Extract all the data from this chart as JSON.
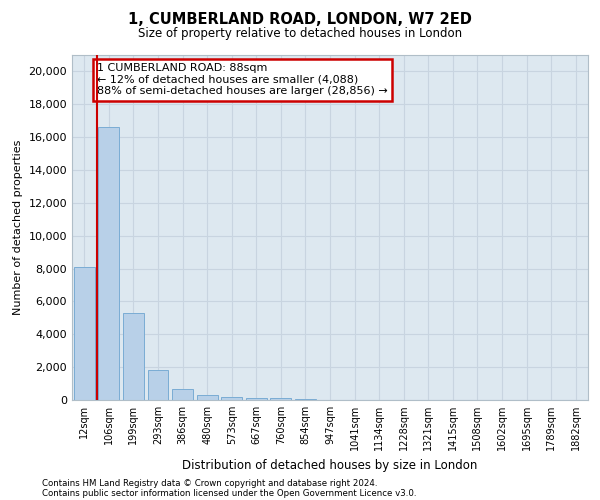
{
  "title_line1": "1, CUMBERLAND ROAD, LONDON, W7 2ED",
  "title_line2": "Size of property relative to detached houses in London",
  "xlabel": "Distribution of detached houses by size in London",
  "ylabel": "Number of detached properties",
  "categories": [
    "12sqm",
    "106sqm",
    "199sqm",
    "293sqm",
    "386sqm",
    "480sqm",
    "573sqm",
    "667sqm",
    "760sqm",
    "854sqm",
    "947sqm",
    "1041sqm",
    "1134sqm",
    "1228sqm",
    "1321sqm",
    "1415sqm",
    "1508sqm",
    "1602sqm",
    "1695sqm",
    "1789sqm",
    "1882sqm"
  ],
  "bar_values": [
    8100,
    16600,
    5300,
    1800,
    650,
    320,
    200,
    150,
    130,
    80,
    0,
    0,
    0,
    0,
    0,
    0,
    0,
    0,
    0,
    0,
    0
  ],
  "bar_color": "#b8d0e8",
  "bar_edge_color": "#7aacd4",
  "annotation_text": "1 CUMBERLAND ROAD: 88sqm\n← 12% of detached houses are smaller (4,088)\n88% of semi-detached houses are larger (28,856) →",
  "annotation_box_color": "#cc0000",
  "vline_x": 0.5,
  "vline_color": "#cc0000",
  "ylim": [
    0,
    21000
  ],
  "yticks": [
    0,
    2000,
    4000,
    6000,
    8000,
    10000,
    12000,
    14000,
    16000,
    18000,
    20000
  ],
  "grid_color": "#c8d4e0",
  "bg_color": "#dde8f0",
  "footnote1": "Contains HM Land Registry data © Crown copyright and database right 2024.",
  "footnote2": "Contains public sector information licensed under the Open Government Licence v3.0."
}
